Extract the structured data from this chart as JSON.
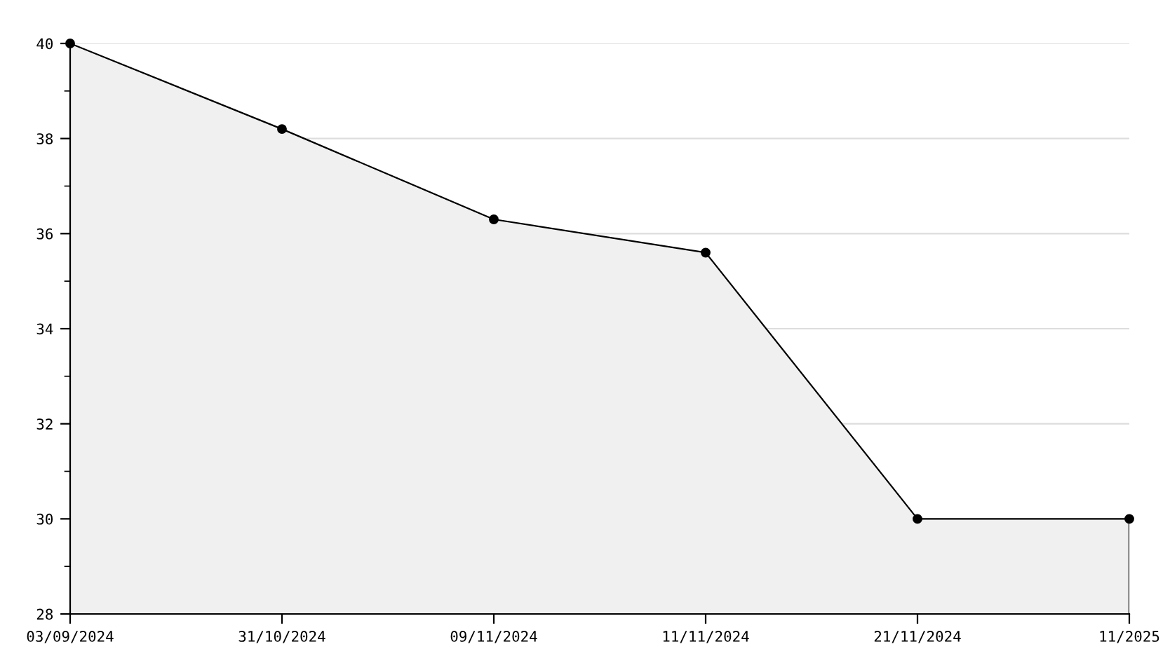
{
  "chart_data": {
    "type": "area",
    "categories": [
      "03/09/2024",
      "31/10/2024",
      "09/11/2024",
      "11/11/2024",
      "21/11/2024",
      "11/2025"
    ],
    "series": [
      {
        "color": "#000000",
        "values": [
          40,
          38.2,
          36.3,
          35.6,
          30,
          30
        ]
      }
    ],
    "ylim": [
      28,
      40
    ],
    "yticks": [
      28,
      30,
      32,
      34,
      36,
      38,
      40
    ],
    "grid": "y",
    "marker": "circle",
    "line_style": "solid",
    "legend": false
  }
}
